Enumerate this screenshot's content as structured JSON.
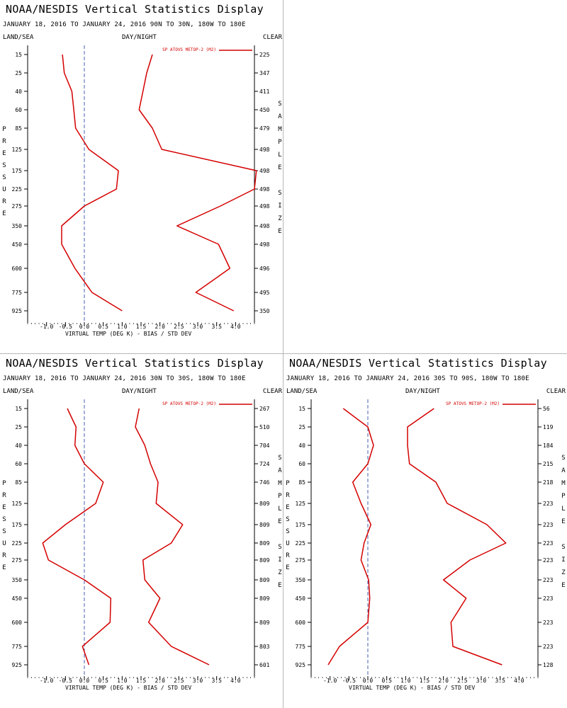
{
  "colors": {
    "line": "#d40000",
    "axis": "#000000",
    "zero_line": "#4a5fb0",
    "divider": "#b8b8b8"
  },
  "axis_labels": {
    "left_vertical": [
      "P",
      "R",
      "E",
      "S",
      "S",
      "U",
      "R",
      "E"
    ],
    "right_vertical_1": [
      "S",
      "A",
      "M",
      "P",
      "L",
      "E"
    ],
    "right_vertical_2": [
      "S",
      "I",
      "Z",
      "E"
    ]
  },
  "chart_data": [
    {
      "type": "line",
      "title": "NOAA/NESDIS Vertical Statistics Display",
      "subtitle": "JANUARY 18, 2016 TO JANUARY 24, 2016  90N TO 30N, 180W TO 180E",
      "header_left": "LAND/SEA",
      "header_center": "DAY/NIGHT",
      "header_right": "CLEAR",
      "legend": "SP ATOVS METOP-2 (M2)",
      "legend_placement": "top-right",
      "xlabel": "VIRTUAL TEMP (DEG K) - BIAS / STD DEV",
      "ylabel": "PRESSURE",
      "y2label": "SAMPLE SIZE",
      "xlim": [
        -1.5,
        4.5
      ],
      "x_ticks": [
        "-1.0",
        "-0.5",
        "0.0",
        "0.5",
        "1.0",
        "1.5",
        "2.0",
        "2.5",
        "3.0",
        "3.5",
        "4.0"
      ],
      "pressure_levels": [
        "15",
        "25",
        "40",
        "60",
        "85",
        "125",
        "175",
        "225",
        "275",
        "350",
        "450",
        "600",
        "775",
        "925"
      ],
      "sample_sizes": [
        "225",
        "347",
        "411",
        "450",
        "479",
        "498",
        "498",
        "498",
        "498",
        "498",
        "498",
        "496",
        "495",
        "350"
      ],
      "series": [
        {
          "values": [
            -0.58,
            -0.53,
            -0.33,
            -0.28,
            -0.23,
            0.12,
            0.9,
            0.85,
            0.0,
            -0.6,
            -0.6,
            -0.25,
            0.2,
            1.0
          ]
        },
        {
          "values": [
            1.8,
            1.65,
            1.55,
            1.45,
            1.8,
            2.05,
            4.55,
            4.5,
            3.6,
            2.45,
            3.55,
            3.85,
            2.95,
            3.95
          ]
        }
      ]
    },
    {
      "type": "line",
      "title": "NOAA/NESDIS Vertical Statistics Display",
      "subtitle": "JANUARY 18, 2016 TO JANUARY 24, 2016  30N TO 30S, 180W TO 180E",
      "header_left": "LAND/SEA",
      "header_center": "DAY/NIGHT",
      "header_right": "CLEAR",
      "legend": "SP ATOVS METOP-2 (M2)",
      "legend_placement": "top-right",
      "xlabel": "VIRTUAL TEMP (DEG K) - BIAS / STD DEV",
      "ylabel": "PRESSURE",
      "y2label": "SAMPLE SIZE",
      "xlim": [
        -1.5,
        4.5
      ],
      "x_ticks": [
        "-1.0",
        "-0.5",
        "0.0",
        "0.5",
        "1.0",
        "1.5",
        "2.0",
        "2.5",
        "3.0",
        "3.5",
        "4.0"
      ],
      "pressure_levels": [
        "15",
        "25",
        "40",
        "60",
        "85",
        "125",
        "175",
        "225",
        "275",
        "350",
        "450",
        "600",
        "775",
        "925"
      ],
      "sample_sizes": [
        "267",
        "510",
        "704",
        "724",
        "746",
        "809",
        "809",
        "809",
        "809",
        "809",
        "809",
        "809",
        "803",
        "601"
      ],
      "series": [
        {
          "values": [
            -0.45,
            -0.22,
            -0.25,
            0.0,
            0.5,
            0.3,
            -0.5,
            -1.1,
            -0.95,
            0.0,
            0.7,
            0.68,
            -0.05,
            0.12
          ]
        },
        {
          "values": [
            1.45,
            1.35,
            1.6,
            1.75,
            1.95,
            1.9,
            2.6,
            2.3,
            1.55,
            1.6,
            2.0,
            1.7,
            2.3,
            3.3
          ]
        }
      ]
    },
    {
      "type": "line",
      "title": "NOAA/NESDIS Vertical Statistics Display",
      "subtitle": "JANUARY 18, 2016 TO JANUARY 24, 2016  30S TO 90S, 180W TO 180E",
      "header_left": "LAND/SEA",
      "header_center": "DAY/NIGHT",
      "header_right": "CLEAR",
      "legend": "SP ATOVS METOP-2 (M2)",
      "legend_placement": "top-right",
      "xlabel": "VIRTUAL TEMP (DEG K) - BIAS / STD DEV",
      "ylabel": "PRESSURE",
      "y2label": "SAMPLE SIZE",
      "xlim": [
        -1.5,
        4.5
      ],
      "x_ticks": [
        "-1.0",
        "-0.5",
        "0.0",
        "0.5",
        "1.0",
        "1.5",
        "2.0",
        "2.5",
        "3.0",
        "3.5",
        "4.0"
      ],
      "pressure_levels": [
        "15",
        "25",
        "40",
        "60",
        "85",
        "125",
        "175",
        "225",
        "275",
        "350",
        "450",
        "600",
        "775",
        "925"
      ],
      "sample_sizes": [
        "56",
        "119",
        "184",
        "215",
        "218",
        "223",
        "223",
        "223",
        "223",
        "223",
        "223",
        "223",
        "223",
        "128"
      ],
      "series": [
        {
          "values": [
            -0.65,
            0.0,
            0.15,
            0.0,
            -0.4,
            -0.18,
            0.08,
            -0.1,
            -0.18,
            0.02,
            0.05,
            0.0,
            -0.75,
            -1.05
          ]
        },
        {
          "values": [
            1.75,
            1.05,
            1.05,
            1.1,
            1.8,
            2.1,
            3.15,
            3.65,
            2.7,
            2.0,
            2.6,
            2.2,
            2.25,
            3.55
          ]
        }
      ]
    }
  ]
}
